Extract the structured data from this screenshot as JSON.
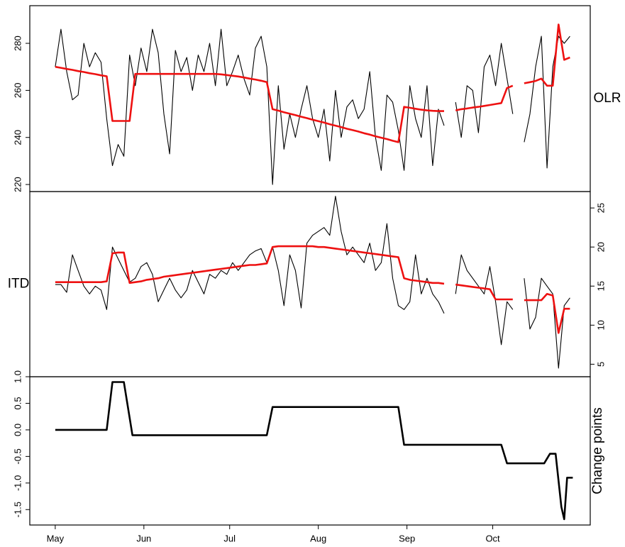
{
  "chart_data": [
    {
      "type": "line",
      "ylabel": "OLR",
      "ylabel_side": "right",
      "yaxis_side": "left",
      "xlim": [
        -8.9,
        187.1
      ],
      "ylim": [
        217,
        296
      ],
      "yticks": [
        220,
        240,
        260,
        280
      ],
      "x": [
        0,
        2,
        4,
        6,
        8,
        10,
        12,
        14,
        16,
        18,
        20,
        22,
        24,
        26,
        28,
        30,
        32,
        34,
        36,
        38,
        40,
        42,
        44,
        46,
        48,
        50,
        52,
        54,
        56,
        58,
        60,
        62,
        64,
        66,
        68,
        70,
        72,
        74,
        76,
        78,
        80,
        82,
        84,
        86,
        88,
        90,
        92,
        94,
        96,
        98,
        100,
        102,
        104,
        106,
        108,
        110,
        112,
        114,
        116,
        118,
        120,
        122,
        124,
        126,
        128,
        130,
        132,
        134,
        136,
        138,
        140,
        142,
        144,
        146,
        148,
        150,
        152,
        154,
        156,
        158,
        160,
        162,
        164,
        166,
        168,
        170,
        172,
        174,
        176,
        178,
        180
      ],
      "series": [
        {
          "color": "#000000",
          "values": [
            270,
            286,
            268,
            256,
            258,
            280,
            270,
            276,
            272,
            248,
            228,
            237,
            232,
            275,
            262,
            278,
            268,
            286,
            276,
            250,
            233,
            277,
            268,
            274,
            260,
            275,
            268,
            280,
            262,
            286,
            262,
            268,
            275,
            265,
            258,
            278,
            283,
            270,
            220,
            262,
            235,
            250,
            240,
            252,
            262,
            248,
            240,
            252,
            230,
            260,
            240,
            253,
            256,
            248,
            252,
            268,
            240,
            226,
            258,
            255,
            243,
            226,
            262,
            248,
            240,
            262,
            228,
            252,
            245,
            null,
            255,
            240,
            262,
            260,
            242,
            270,
            275,
            262,
            280,
            265,
            250,
            null,
            238,
            250,
            270,
            283,
            227,
            270,
            283,
            280,
            283
          ]
        },
        {
          "color": "#ee1111",
          "values": [
            270,
            269.6,
            269.1,
            268.7,
            268.2,
            267.8,
            267.3,
            266.9,
            266.4,
            266,
            247,
            247,
            247,
            247,
            267,
            267,
            267,
            267,
            267,
            267,
            267,
            267,
            267,
            267,
            267,
            267,
            267,
            267,
            267,
            266.8,
            266.5,
            266.2,
            265.9,
            265.5,
            265,
            264.6,
            264.1,
            263.5,
            252,
            251.4,
            250.7,
            250.1,
            249.5,
            248.8,
            248.2,
            247.5,
            246.9,
            246.3,
            245.6,
            245,
            244.4,
            243.7,
            243.1,
            242.5,
            241.8,
            241.2,
            240.5,
            239.9,
            239.3,
            238.6,
            238,
            253,
            252.6,
            252.2,
            251.8,
            251.5,
            251.3,
            251.2,
            251.2,
            null,
            251.5,
            252,
            252.3,
            252.7,
            253,
            253.4,
            253.8,
            254.2,
            254.6,
            261,
            262,
            null,
            263,
            263.5,
            264,
            265,
            262,
            262,
            288,
            273,
            274
          ]
        }
      ]
    },
    {
      "type": "line",
      "ylabel": "ITD",
      "ylabel_side": "left",
      "yaxis_side": "right",
      "xlim": [
        -8.9,
        187.1
      ],
      "ylim": [
        3.4,
        27.1
      ],
      "yticks": [
        5,
        10,
        15,
        20,
        25
      ],
      "x": [
        0,
        2,
        4,
        6,
        8,
        10,
        12,
        14,
        16,
        18,
        20,
        22,
        24,
        26,
        28,
        30,
        32,
        34,
        36,
        38,
        40,
        42,
        44,
        46,
        48,
        50,
        52,
        54,
        56,
        58,
        60,
        62,
        64,
        66,
        68,
        70,
        72,
        74,
        76,
        78,
        80,
        82,
        84,
        86,
        88,
        90,
        92,
        94,
        96,
        98,
        100,
        102,
        104,
        106,
        108,
        110,
        112,
        114,
        116,
        118,
        120,
        122,
        124,
        126,
        128,
        130,
        132,
        134,
        136,
        138,
        140,
        142,
        144,
        146,
        148,
        150,
        152,
        154,
        156,
        158,
        160,
        162,
        164,
        166,
        168,
        170,
        172,
        174,
        176,
        178,
        180
      ],
      "series": [
        {
          "color": "#000000",
          "values": [
            15.2,
            15.2,
            14.2,
            19,
            17,
            15,
            14,
            15,
            14.5,
            12,
            20,
            18.5,
            17,
            15.5,
            16,
            17.5,
            18,
            16.5,
            13,
            14.5,
            16,
            14.5,
            13.5,
            14.5,
            17,
            15.5,
            14,
            16.5,
            16,
            17,
            16.5,
            18,
            17,
            18,
            19,
            19.5,
            19.8,
            18,
            20,
            17,
            12.5,
            19,
            17,
            12.2,
            20.5,
            21.5,
            22,
            22.5,
            21.5,
            26.5,
            22,
            19,
            20,
            19,
            18,
            20.5,
            17,
            18,
            23,
            16,
            12.5,
            12,
            13,
            19,
            14,
            16,
            14,
            13,
            11.5,
            null,
            14,
            19,
            17,
            16,
            15,
            14,
            17.5,
            13,
            7.5,
            13,
            12,
            null,
            16,
            9.5,
            11,
            16,
            15,
            14,
            4.5,
            12.5,
            13.5
          ]
        },
        {
          "color": "#ee1111",
          "values": [
            15.5,
            15.5,
            15.5,
            15.5,
            15.5,
            15.5,
            15.5,
            15.5,
            15.5,
            15.6,
            19.2,
            19.3,
            19.3,
            15.4,
            15.5,
            15.6,
            15.8,
            15.9,
            16,
            16.2,
            16.3,
            16.4,
            16.5,
            16.6,
            16.7,
            16.8,
            16.9,
            17,
            17.1,
            17.2,
            17.3,
            17.4,
            17.5,
            17.6,
            17.7,
            17.7,
            17.8,
            17.9,
            20,
            20.1,
            20.1,
            20.1,
            20.1,
            20.1,
            20.1,
            20.1,
            20,
            20,
            19.9,
            19.8,
            19.7,
            19.6,
            19.5,
            19.4,
            19.3,
            19.2,
            19.1,
            19,
            18.9,
            18.8,
            18.7,
            16,
            15.8,
            15.7,
            15.6,
            15.5,
            15.4,
            15.4,
            15.3,
            null,
            15.2,
            15.1,
            15,
            14.9,
            14.8,
            14.7,
            14.6,
            13.3,
            13.3,
            13.3,
            13.3,
            null,
            13.2,
            13.2,
            13.2,
            13.2,
            14,
            13.8,
            9,
            12.1,
            12.1
          ]
        }
      ]
    },
    {
      "type": "line",
      "ylabel": "Change points",
      "ylabel_side": "right",
      "yaxis_side": "left",
      "xlim": [
        -8.9,
        187.1
      ],
      "ylim": [
        -1.79,
        1.0
      ],
      "yticks": [
        {
          "value": 1,
          "label": "1.0"
        },
        0.5,
        {
          "value": 0,
          "label": "0.0"
        },
        -0.5,
        {
          "value": -1,
          "label": "-1.0"
        },
        -1.5
      ],
      "xticks": [
        {
          "value": 0,
          "label": "May"
        },
        {
          "value": 31,
          "label": "Jun"
        },
        {
          "value": 61,
          "label": "Jul"
        },
        {
          "value": 92,
          "label": "Aug"
        },
        {
          "value": 123,
          "label": "Sep"
        },
        {
          "value": 153,
          "label": "Oct"
        }
      ],
      "series": [
        {
          "color": "#000000",
          "x": [
            0,
            18,
            20,
            24,
            27,
            74,
            76,
            120,
            122,
            156,
            158,
            171,
            173,
            175,
            177,
            178,
            179,
            181
          ],
          "values": [
            0,
            0,
            0.9,
            0.9,
            -0.1,
            -0.1,
            0.43,
            0.43,
            -0.28,
            -0.28,
            -0.63,
            -0.63,
            -0.45,
            -0.45,
            -1.45,
            -1.68,
            -0.9,
            -0.9
          ]
        }
      ]
    }
  ]
}
